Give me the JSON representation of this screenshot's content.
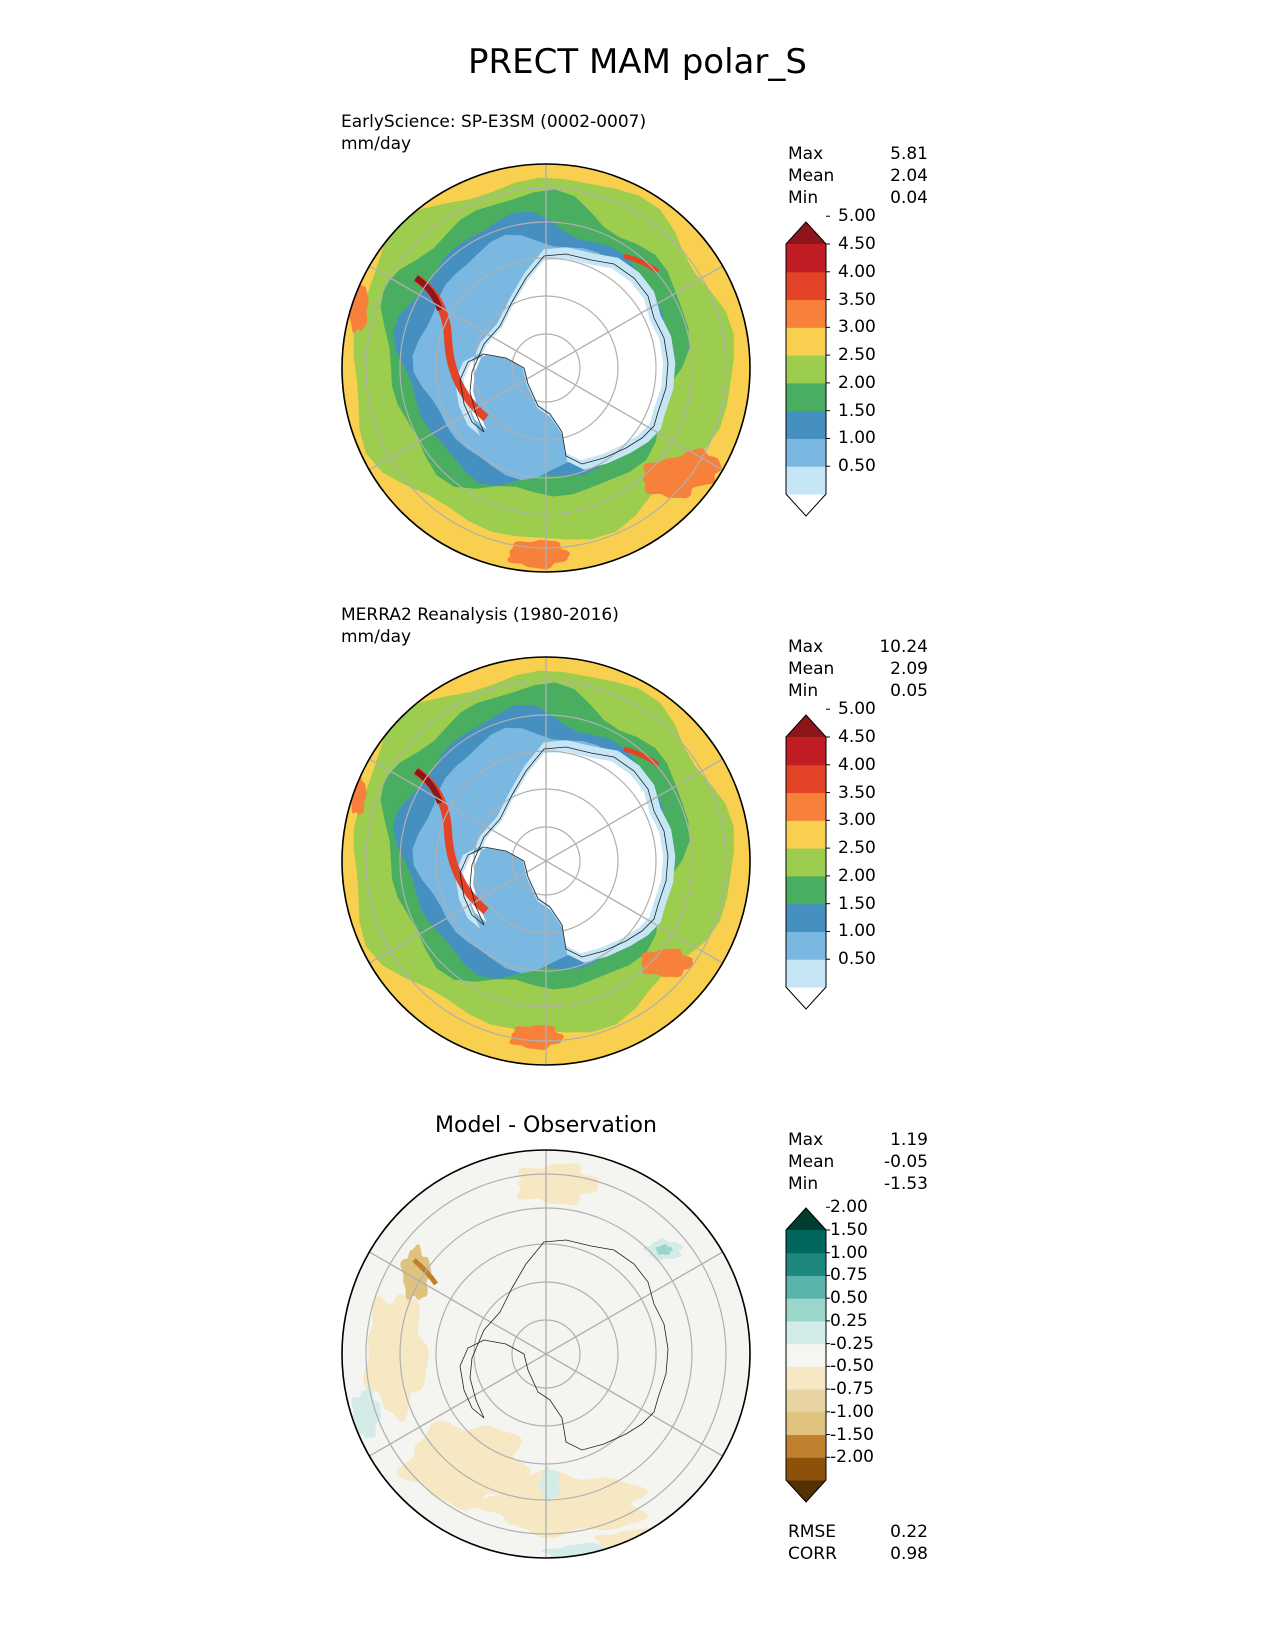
{
  "title": "PRECT MAM polar_S",
  "panels": [
    {
      "id": "test",
      "title_line1": "EarlyScience: SP-E3SM (0002-0007)",
      "title_line2": "mm/day",
      "stats": [
        {
          "label": "Max",
          "value": "5.81"
        },
        {
          "label": "Mean",
          "value": "2.04"
        },
        {
          "label": "Min",
          "value": "0.04"
        }
      ],
      "colorbar": {
        "levels": [
          "0.50",
          "1.00",
          "1.50",
          "2.00",
          "2.50",
          "3.00",
          "3.50",
          "4.00",
          "4.50",
          "5.00"
        ],
        "colors": [
          "#ffffff",
          "#c6e6f6",
          "#7ab8e2",
          "#468fc1",
          "#4aae60",
          "#9ccd4e",
          "#f8cf4e",
          "#f7813a",
          "#e34428",
          "#c01d24",
          "#8e1519"
        ]
      },
      "field_colors": {
        "ocean_low": "#f8cf4e",
        "ring_a": "#9ccd4e",
        "ring_b": "#4aae60",
        "ring_c": "#468fc1",
        "ring_d": "#7ab8e2",
        "ring_e": "#c6e6f6",
        "ice": "#ffffff",
        "hot": "#f7813a",
        "hot2": "#e34428",
        "hot3": "#8e1519"
      }
    },
    {
      "id": "reference",
      "title_line1": "MERRA2 Reanalysis (1980-2016)",
      "title_line2": "mm/day",
      "stats": [
        {
          "label": "Max",
          "value": "10.24"
        },
        {
          "label": "Mean",
          "value": "2.09"
        },
        {
          "label": "Min",
          "value": "0.05"
        }
      ],
      "colorbar": {
        "levels": [
          "0.50",
          "1.00",
          "1.50",
          "2.00",
          "2.50",
          "3.00",
          "3.50",
          "4.00",
          "4.50",
          "5.00"
        ],
        "colors": [
          "#ffffff",
          "#c6e6f6",
          "#7ab8e2",
          "#468fc1",
          "#4aae60",
          "#9ccd4e",
          "#f8cf4e",
          "#f7813a",
          "#e34428",
          "#c01d24",
          "#8e1519"
        ]
      },
      "field_colors": {
        "ocean_low": "#f8cf4e",
        "ring_a": "#9ccd4e",
        "ring_b": "#4aae60",
        "ring_c": "#468fc1",
        "ring_d": "#7ab8e2",
        "ring_e": "#c6e6f6",
        "ice": "#ffffff",
        "hot": "#f7813a",
        "hot2": "#e34428",
        "hot3": "#8e1519"
      }
    },
    {
      "id": "difference",
      "title_center": "Model - Observation",
      "stats": [
        {
          "label": "Max",
          "value": "1.19"
        },
        {
          "label": "Mean",
          "value": "-0.05"
        },
        {
          "label": "Min",
          "value": "-1.53"
        }
      ],
      "bottom_stats": [
        {
          "label": "RMSE",
          "value": "0.22"
        },
        {
          "label": "CORR",
          "value": "0.98"
        }
      ],
      "colorbar": {
        "levels": [
          "-2.00",
          "-1.50",
          "-1.00",
          "-0.75",
          "-0.50",
          "-0.25",
          "0.25",
          "0.50",
          "0.75",
          "1.00",
          "1.50",
          "2.00"
        ],
        "colors": [
          "#543005",
          "#8c510a",
          "#bf812d",
          "#dfc27d",
          "#e8d3a2",
          "#f6e8c3",
          "#f5f5f2",
          "#d4ece7",
          "#9ad6ca",
          "#5ab4ac",
          "#1f887e",
          "#01665e",
          "#003c30"
        ]
      },
      "field_colors": {
        "bg": "#f4f4f1",
        "neg": "#f6e8c3",
        "neg2": "#dfc27d",
        "neg3": "#bf812d",
        "pos": "#d4ece7",
        "pos2": "#9ad6ca"
      }
    }
  ]
}
